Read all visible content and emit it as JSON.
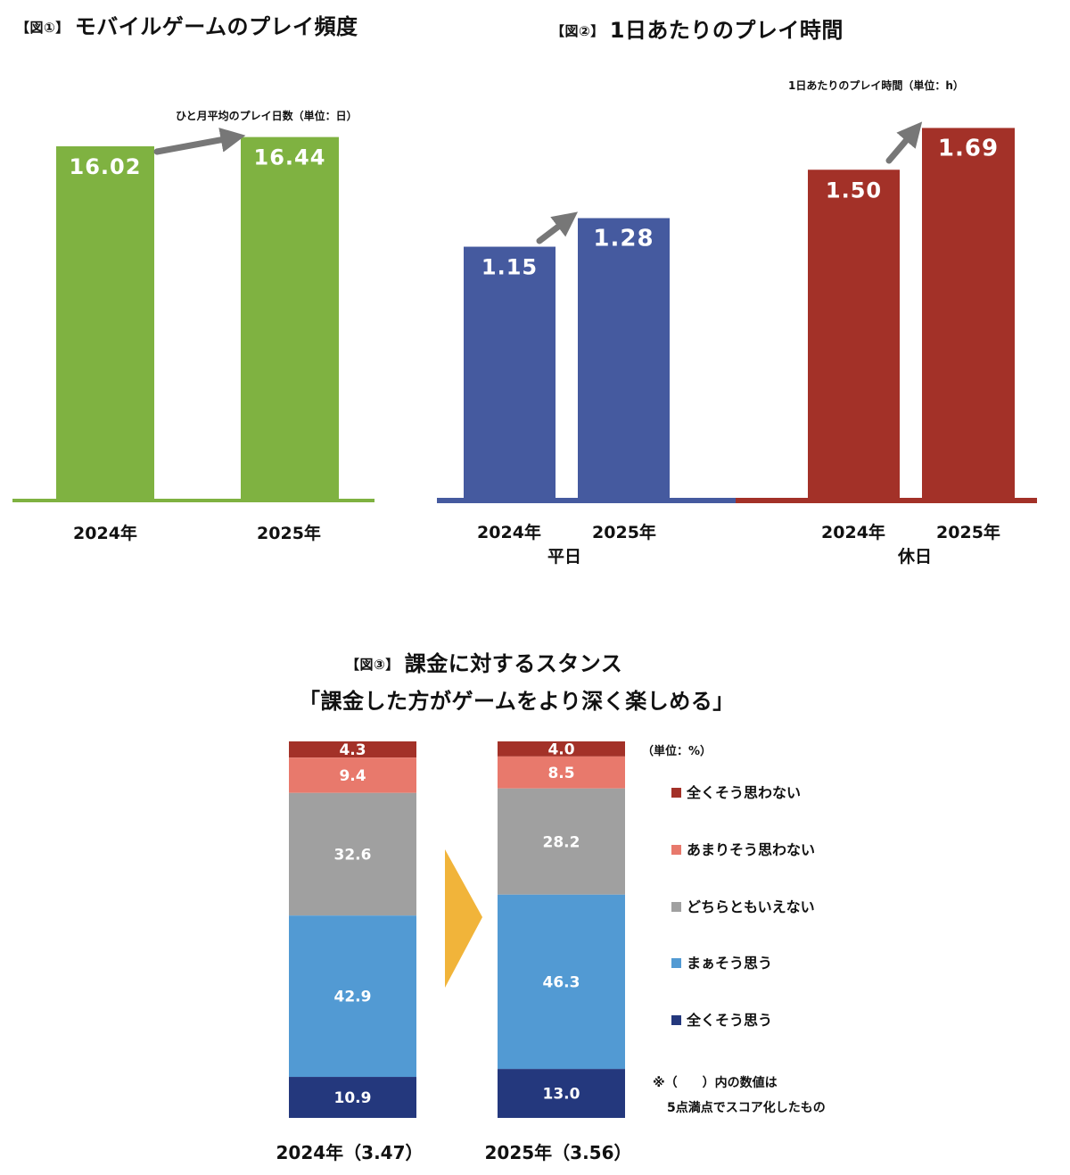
{
  "fig1": {
    "tag": "【図①】",
    "title": "モバイルゲームのプレイ頻度",
    "unit_note": "ひと月平均のプレイ日数（単位：日）",
    "xlabels": [
      "2024年",
      "2025年"
    ]
  },
  "fig2": {
    "tag": "【図②】",
    "title": "1日あたりのプレイ時間",
    "unit_note": "1日あたりのプレイ時間（単位：h）",
    "xlabels": [
      "2024年",
      "2025年",
      "2024年",
      "2025年"
    ],
    "group_labels": [
      "平日",
      "休日"
    ]
  },
  "fig3": {
    "tag": "【図③】",
    "title_line1": "課金に対するスタンス",
    "title_line2": "「課金した方がゲームをより深く楽しめる」",
    "unit_note": "（単位：%）",
    "bar_labels": [
      "2024年（3.47）",
      "2025年（3.56）"
    ],
    "legend": [
      "全くそう思わない",
      "あまりそう思わない",
      "どちらともいえない",
      "まぁそう思う",
      "全くそう思う"
    ],
    "footnote_line1": "※（　　）内の数値は",
    "footnote_line2": "5点満点でスコア化したもの"
  },
  "colors": {
    "green": "#7fb241",
    "blue": "#455a9f",
    "red": "#a33128",
    "arrow": "#777777",
    "s_strong_disagree": "#a33128",
    "s_disagree": "#e8796c",
    "s_neutral": "#a0a0a0",
    "s_agree": "#529ad3",
    "s_strong_agree": "#24387d",
    "chevron": "#f1b43a"
  },
  "chart_data": [
    {
      "type": "bar",
      "title": "モバイルゲームのプレイ頻度",
      "categories": [
        "2024年",
        "2025年"
      ],
      "values": [
        16.02,
        16.44
      ],
      "value_labels": [
        "16.02",
        "16.44"
      ],
      "unit": "日"
    },
    {
      "type": "bar",
      "title": "1日あたりのプレイ時間",
      "groups": [
        "平日",
        "休日"
      ],
      "categories": [
        "2024年",
        "2025年"
      ],
      "series": [
        {
          "name": "平日",
          "values": [
            1.15,
            1.28
          ],
          "value_labels": [
            "1.15",
            "1.28"
          ]
        },
        {
          "name": "休日",
          "values": [
            1.5,
            1.69
          ],
          "value_labels": [
            "1.50",
            "1.69"
          ]
        }
      ],
      "unit": "h"
    },
    {
      "type": "bar",
      "stacked": true,
      "percent": true,
      "title": "課金に対するスタンス",
      "categories": [
        "2024年（3.47）",
        "2025年（3.56）"
      ],
      "series": [
        {
          "name": "全くそう思わない",
          "values": [
            4.3,
            4.0
          ],
          "value_labels": [
            "4.3",
            "4.0"
          ]
        },
        {
          "name": "あまりそう思わない",
          "values": [
            9.4,
            8.5
          ],
          "value_labels": [
            "9.4",
            "8.5"
          ]
        },
        {
          "name": "どちらともいえない",
          "values": [
            32.6,
            28.2
          ],
          "value_labels": [
            "32.6",
            "28.2"
          ]
        },
        {
          "name": "まぁそう思う",
          "values": [
            42.9,
            46.3
          ],
          "value_labels": [
            "42.9",
            "46.3"
          ]
        },
        {
          "name": "全くそう思う",
          "values": [
            10.9,
            13.0
          ],
          "value_labels": [
            "10.9",
            "13.0"
          ]
        }
      ]
    }
  ]
}
